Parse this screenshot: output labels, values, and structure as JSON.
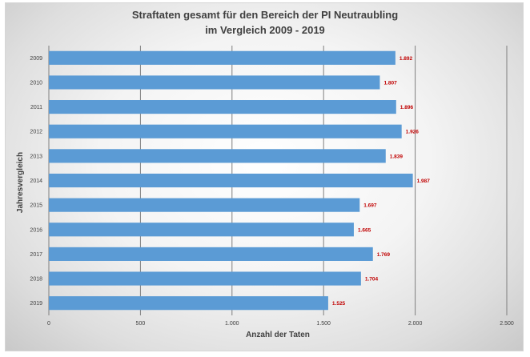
{
  "chart_data": {
    "type": "bar",
    "orientation": "horizontal",
    "title_line1": "Straftaten gesamt für den Bereich der PI Neutraubling",
    "title_line2": "im Vergleich 2009 - 2019",
    "xlabel": "Anzahl der Taten",
    "ylabel": "Jahresvergleich",
    "categories": [
      "2009",
      "2010",
      "2011",
      "2012",
      "2013",
      "2014",
      "2015",
      "2016",
      "2017",
      "2018",
      "2019"
    ],
    "values": [
      1892,
      1807,
      1896,
      1926,
      1839,
      1987,
      1697,
      1665,
      1769,
      1704,
      1525
    ],
    "data_labels": [
      "1.892",
      "1.807",
      "1.896",
      "1.926",
      "1.839",
      "1.987",
      "1.697",
      "1.665",
      "1.769",
      "1.704",
      "1.525"
    ],
    "xlim": [
      0,
      2500
    ],
    "x_ticks": [
      0,
      500,
      1000,
      1500,
      2000,
      2500
    ],
    "x_tick_labels": [
      "0",
      "500",
      "1.000",
      "1.500",
      "2.000",
      "2.500"
    ],
    "grid": "vertical",
    "legend": "none",
    "colors": {
      "bar": "#5b9bd5",
      "data_label": "#c00000",
      "grid": "#7f7f7f"
    }
  }
}
